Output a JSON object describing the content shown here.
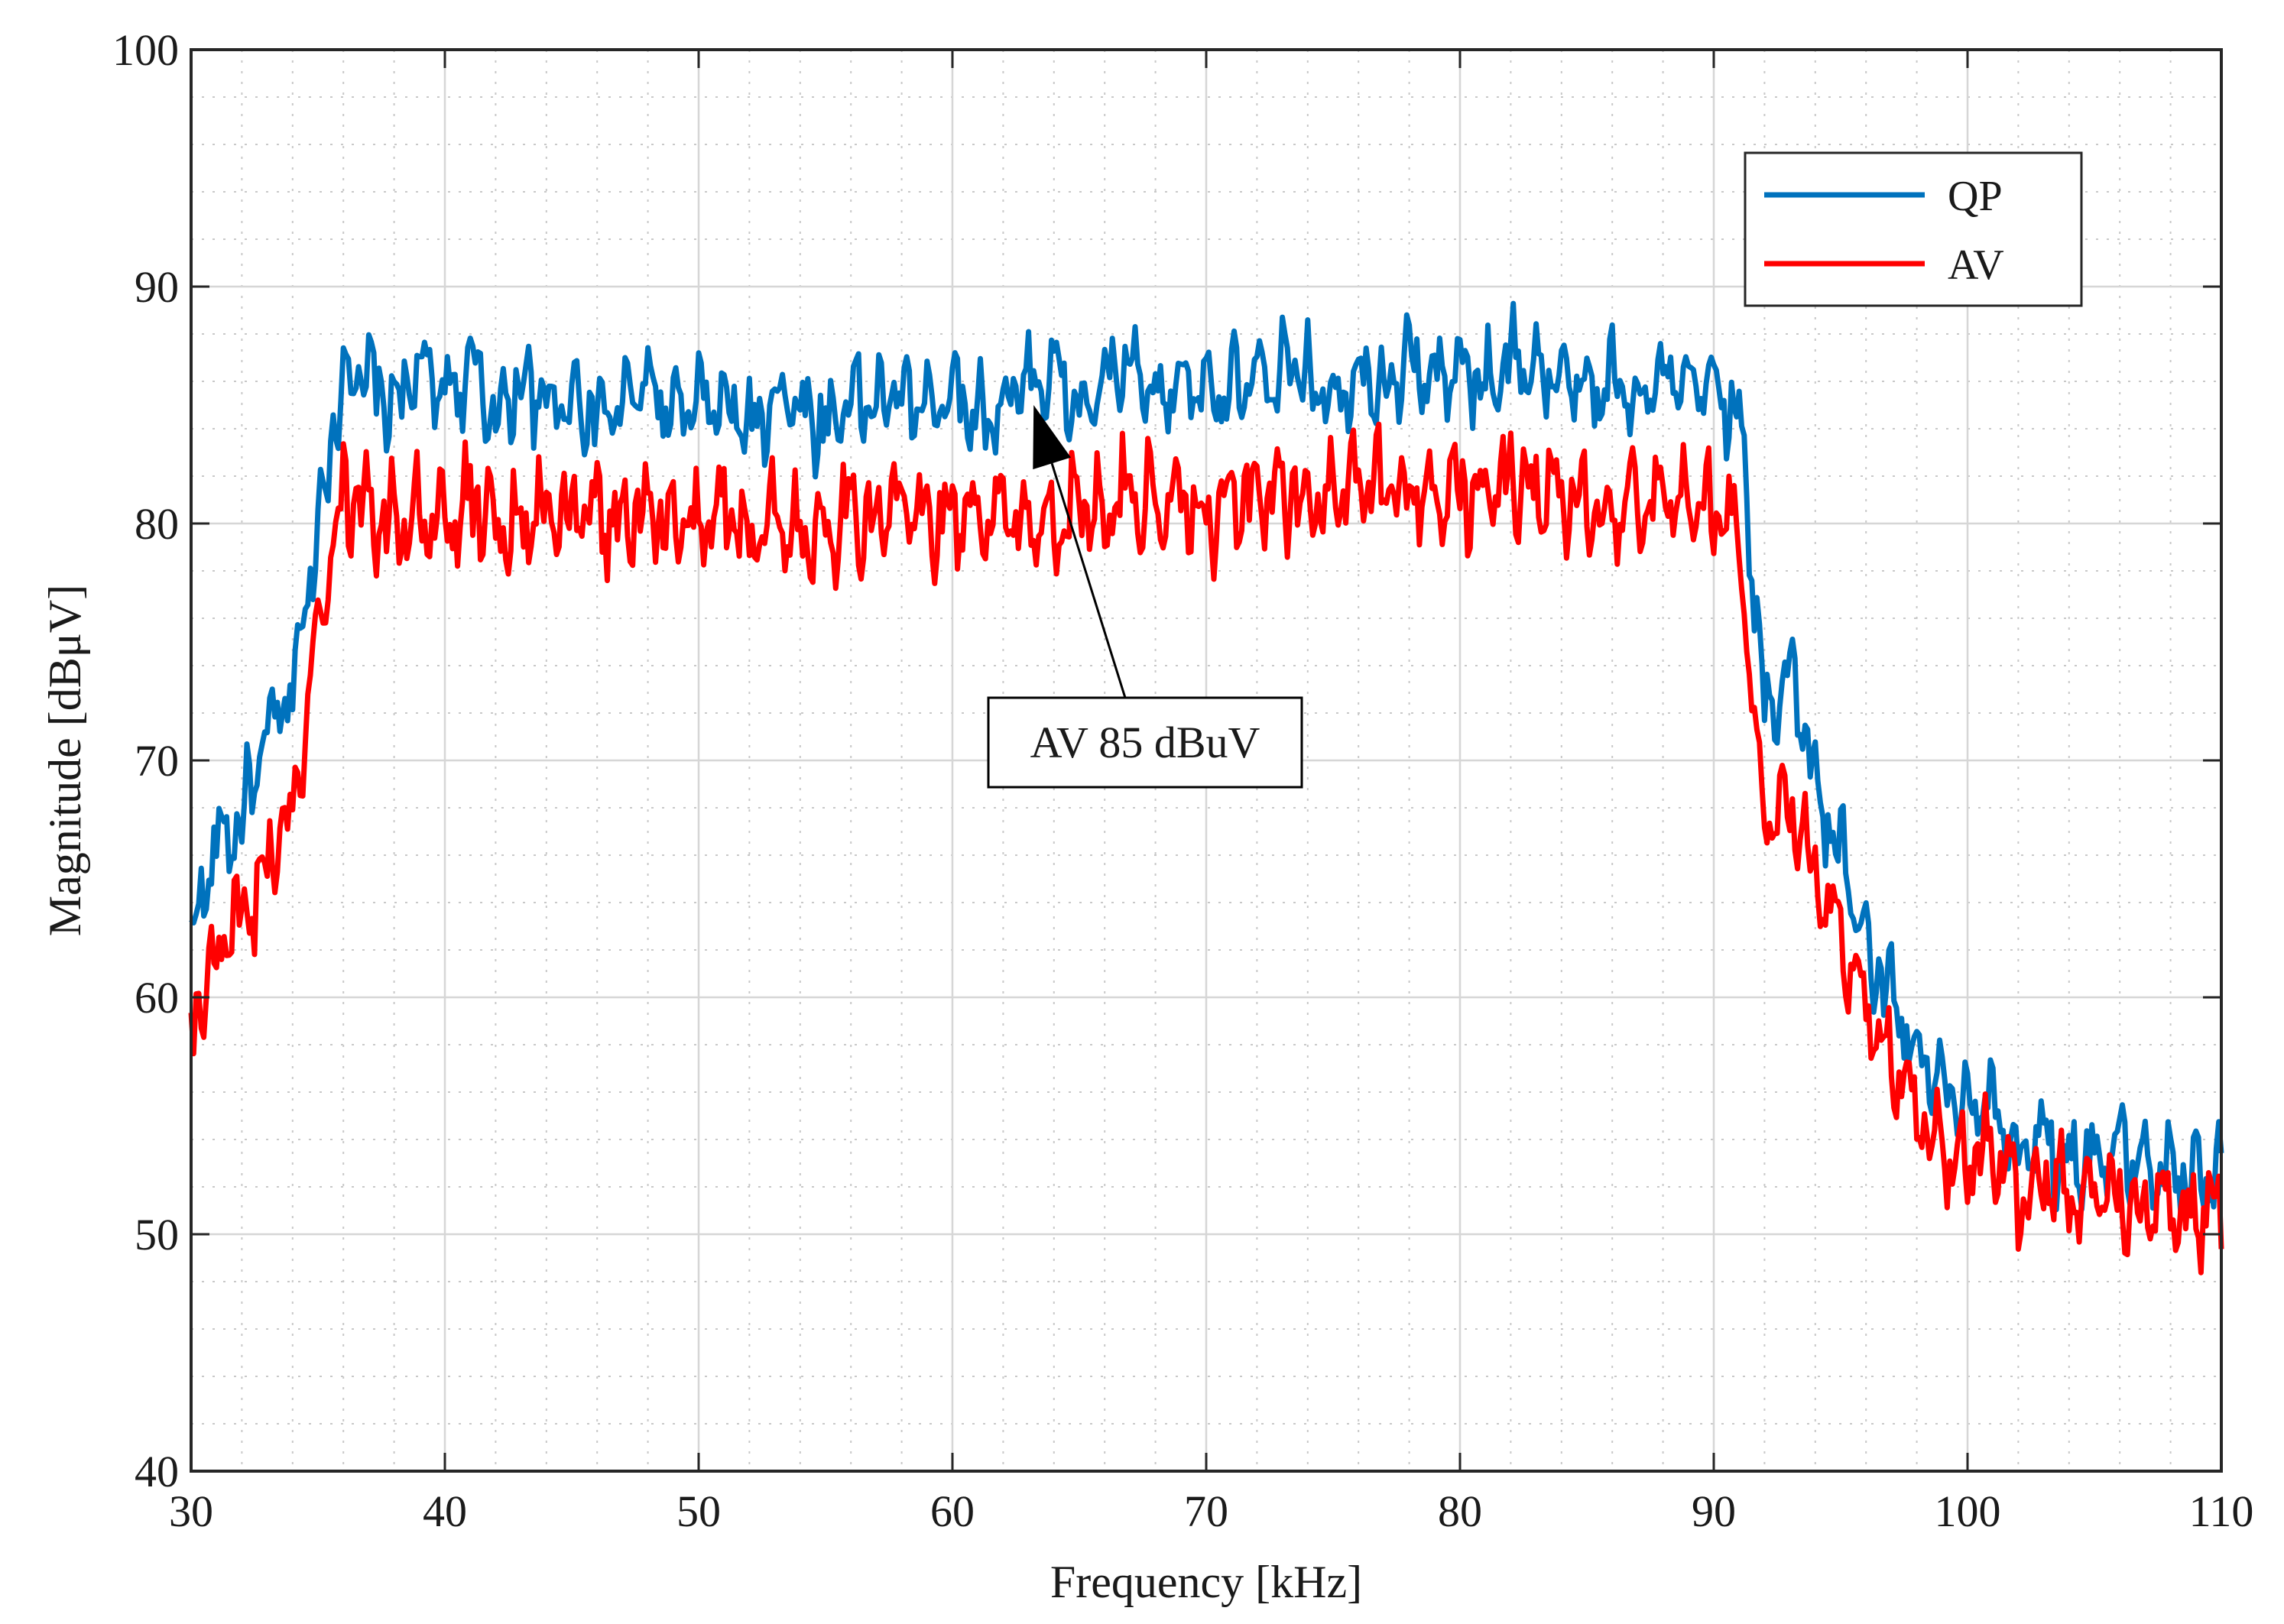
{
  "chart_data": {
    "type": "line",
    "title": "",
    "xlabel": "Frequency [kHz]",
    "ylabel": "Magnitude [dBμV]",
    "xlim": [
      30,
      110
    ],
    "ylim": [
      40,
      100
    ],
    "x_ticks": [
      30,
      40,
      50,
      60,
      70,
      80,
      90,
      100,
      110
    ],
    "y_ticks": [
      40,
      50,
      60,
      70,
      80,
      90,
      100
    ],
    "grid": true,
    "minor_grid": true,
    "legend_position": "top-right",
    "x": [
      30,
      31,
      32,
      33,
      34,
      35,
      36,
      37,
      38,
      39,
      40,
      41,
      42,
      43,
      44,
      45,
      46,
      47,
      48,
      49,
      50,
      51,
      52,
      53,
      54,
      55,
      56,
      57,
      58,
      59,
      60,
      61,
      62,
      63,
      64,
      65,
      66,
      67,
      68,
      69,
      70,
      71,
      72,
      73,
      74,
      75,
      76,
      77,
      78,
      79,
      80,
      81,
      82,
      83,
      84,
      85,
      86,
      87,
      88,
      89,
      90,
      91,
      92,
      93,
      94,
      95,
      96,
      97,
      98,
      99,
      100,
      101,
      102,
      103,
      104,
      105,
      106,
      107,
      108,
      109,
      110
    ],
    "series": [
      {
        "name": "QP",
        "color": "#0072BD",
        "values": [
          62.5,
          66.5,
          67.5,
          71,
          73,
          80,
          86.5,
          86,
          85,
          86.5,
          85.5,
          86.5,
          84.5,
          86,
          85,
          85.5,
          84.5,
          85,
          86,
          84.5,
          85,
          85,
          84,
          85.5,
          85,
          84,
          85.5,
          85,
          85.5,
          85,
          86,
          84.5,
          85,
          86,
          86.5,
          84.5,
          86,
          86.5,
          85,
          86,
          86,
          85.5,
          86,
          86.5,
          86,
          85.5,
          86.5,
          86,
          87,
          86,
          86.5,
          86,
          87,
          86.5,
          86,
          85.5,
          86,
          85.5,
          86,
          85.5,
          86,
          84.5,
          72,
          74,
          69,
          66,
          62,
          60,
          57.5,
          56,
          55,
          55.5,
          53.5,
          54,
          53,
          53.5,
          53.5,
          53,
          53,
          52.5,
          52.5
        ]
      },
      {
        "name": "AV",
        "color": "#FF0000",
        "values": [
          58.5,
          62,
          63,
          65.5,
          68,
          76,
          81,
          80.5,
          80,
          80.5,
          79.5,
          81,
          80,
          80,
          80.5,
          80,
          80.5,
          80,
          80.5,
          79.5,
          80,
          80.5,
          79.5,
          80.5,
          79.5,
          80,
          80.5,
          80,
          81,
          80,
          80.5,
          79.5,
          81,
          80,
          80,
          81,
          80.5,
          81.5,
          80.5,
          81,
          80.5,
          80.5,
          81,
          81.5,
          81,
          81,
          81.5,
          81,
          81.5,
          81,
          81.5,
          81,
          82,
          81.5,
          81,
          80.5,
          81,
          80.5,
          81,
          80.5,
          80.5,
          79.5,
          67,
          68,
          65,
          62,
          59.5,
          57.5,
          55,
          53.5,
          53,
          53.5,
          51.5,
          52.5,
          51.5,
          52,
          51.5,
          51,
          51,
          50.5,
          51
        ]
      }
    ],
    "annotations": [
      {
        "text": "AV 85 dBuV",
        "target_x": 63.2,
        "target_y": 85
      }
    ]
  }
}
